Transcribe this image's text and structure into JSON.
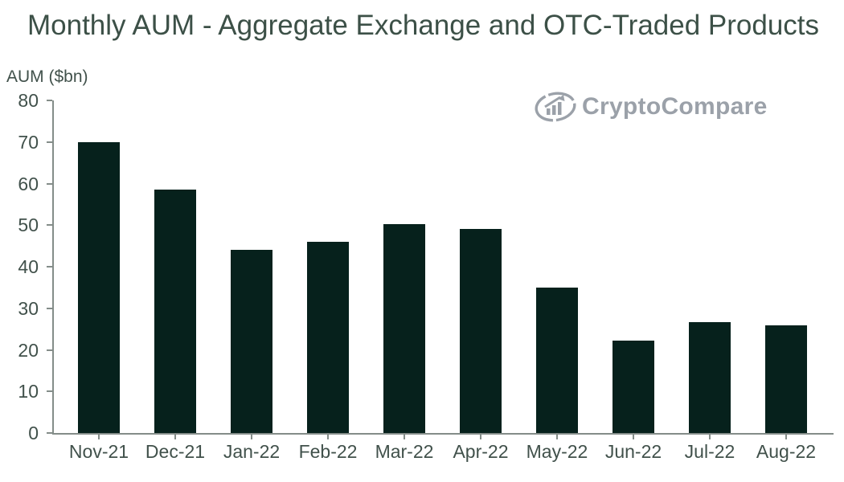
{
  "title": "Monthly AUM - Aggregate Exchange and OTC-Traded Products",
  "y_axis_title": "AUM ($bn)",
  "watermark": {
    "brand": "CryptoCompare",
    "icon": "cryptocompare-logo-icon"
  },
  "colors": {
    "background": "#ffffff",
    "bar": "#06211c",
    "title_text": "#3c5047",
    "axis_text": "#41514b",
    "axis_line": "#848d89",
    "watermark": "#9ba1a9"
  },
  "chart_data": {
    "type": "bar",
    "title": "Monthly AUM - Aggregate Exchange and OTC-Traded Products",
    "xlabel": "",
    "ylabel": "AUM ($bn)",
    "categories": [
      "Nov-21",
      "Dec-21",
      "Jan-22",
      "Feb-22",
      "Mar-22",
      "Apr-22",
      "May-22",
      "Jun-22",
      "Jul-22",
      "Aug-22"
    ],
    "values": [
      70,
      58.6,
      44,
      46,
      50.2,
      49,
      35,
      22.2,
      26.7,
      25.9
    ],
    "ylim": [
      0,
      80
    ],
    "yticks": [
      0,
      10,
      20,
      30,
      40,
      50,
      60,
      70,
      80
    ],
    "ytick_step": 10,
    "grid": false,
    "legend": "none"
  }
}
